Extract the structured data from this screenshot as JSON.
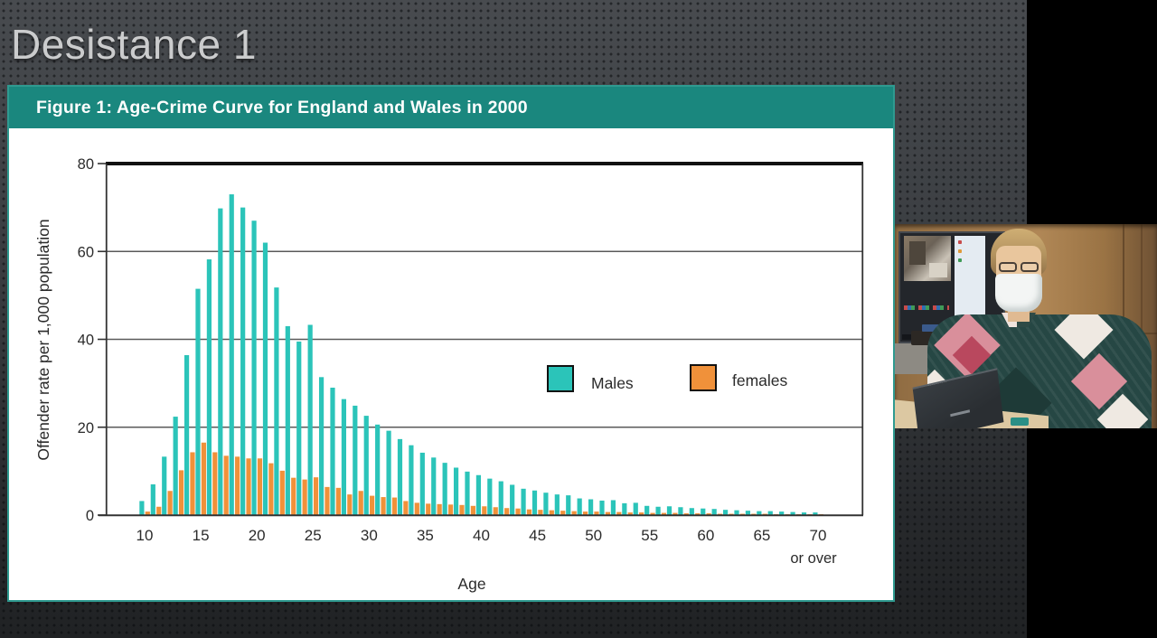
{
  "slide": {
    "title": "Desistance 1"
  },
  "figure": {
    "title": "Figure 1: Age-Crime Curve for England and Wales in 2000"
  },
  "colors": {
    "header_teal": "#1a877e",
    "figure_border": "#2f9a90",
    "male_bar": "#2bc4b9",
    "female_bar": "#f0913a",
    "gridline": "#5a5a5a",
    "slide_background": "#3e4145",
    "title_text": "#cbcccd"
  },
  "chart_data": {
    "type": "bar",
    "title": "Figure 1: Age-Crime Curve for England and Wales in 2000",
    "xlabel": "Age",
    "ylabel": "Offender rate per 1,000 population",
    "ylim": [
      0,
      80
    ],
    "y_tick_labels": [
      0,
      20,
      40,
      60,
      80
    ],
    "x_tick_labels": [
      10,
      15,
      20,
      25,
      30,
      35,
      40,
      45,
      50,
      55,
      60,
      65,
      70
    ],
    "last_tick_sublabel": "or over",
    "grid": "horizontal",
    "legend_position": "inside-right",
    "x": [
      10,
      11,
      12,
      13,
      14,
      15,
      16,
      17,
      18,
      19,
      20,
      21,
      22,
      23,
      24,
      25,
      26,
      27,
      28,
      29,
      30,
      31,
      32,
      33,
      34,
      35,
      36,
      37,
      38,
      39,
      40,
      41,
      42,
      43,
      44,
      45,
      46,
      47,
      48,
      49,
      50,
      51,
      52,
      53,
      54,
      55,
      56,
      57,
      58,
      59,
      60,
      61,
      62,
      63,
      64,
      65,
      66,
      67,
      68,
      69,
      70
    ],
    "series": [
      {
        "name": "Males",
        "color": "#2bc4b9",
        "values": [
          3.2,
          7.0,
          13.3,
          22.4,
          36.4,
          51.5,
          58.2,
          69.8,
          73.0,
          70.0,
          67.0,
          62.0,
          51.8,
          43.0,
          39.5,
          43.3,
          31.4,
          29.0,
          26.4,
          24.9,
          22.6,
          20.6,
          19.2,
          17.3,
          15.9,
          14.2,
          13.1,
          11.9,
          10.8,
          9.9,
          9.1,
          8.3,
          7.7,
          6.9,
          6.0,
          5.6,
          5.1,
          4.7,
          4.5,
          3.8,
          3.6,
          3.3,
          3.4,
          2.7,
          2.8,
          2.1,
          1.9,
          2.0,
          1.8,
          1.6,
          1.5,
          1.4,
          1.2,
          1.1,
          1.0,
          0.9,
          0.9,
          0.8,
          0.7,
          0.6,
          0.6
        ]
      },
      {
        "name": "females",
        "color": "#f0913a",
        "values": [
          0.8,
          1.9,
          5.5,
          10.2,
          14.3,
          16.5,
          14.3,
          13.5,
          13.3,
          12.9,
          12.9,
          11.8,
          10.1,
          8.5,
          8.1,
          8.6,
          6.4,
          6.2,
          4.7,
          5.5,
          4.4,
          4.1,
          4.0,
          3.2,
          2.8,
          2.6,
          2.5,
          2.4,
          2.3,
          2.1,
          2.0,
          1.8,
          1.6,
          1.5,
          1.3,
          1.2,
          1.1,
          1.0,
          0.9,
          0.8,
          0.8,
          0.7,
          0.7,
          0.6,
          0.6,
          0.5,
          0.5,
          0.5,
          0.4,
          0.4,
          0.4,
          0.3,
          0.3,
          0.3,
          0.3,
          0.3,
          0.2,
          0.2,
          0.2,
          0.2,
          0.2
        ]
      }
    ]
  },
  "webcam": {
    "label": "presenter video feed"
  }
}
